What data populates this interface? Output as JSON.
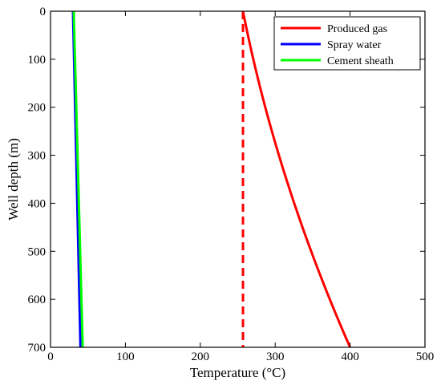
{
  "chart_data": {
    "type": "line",
    "title": "",
    "xlabel": "Temperature (°C)",
    "ylabel": "Well depth  (m)",
    "xlim": [
      0,
      500
    ],
    "ylim": [
      0,
      700
    ],
    "y_inverted": true,
    "x_ticks": [
      "0",
      "100",
      "200",
      "300",
      "400",
      "500"
    ],
    "y_ticks": [
      "0",
      "100",
      "200",
      "300",
      "400",
      "500",
      "600",
      "700"
    ],
    "grid": false,
    "legend_position": "top-right",
    "series": [
      {
        "name": "Produced gas",
        "color": "#ff0000",
        "style": "solid",
        "points": [
          [
            257,
            0
          ],
          [
            259,
            25
          ],
          [
            268,
            100
          ],
          [
            280,
            200
          ],
          [
            294,
            300
          ],
          [
            311,
            400
          ],
          [
            331,
            500
          ],
          [
            353,
            600
          ],
          [
            377,
            700
          ],
          [
            400,
            700
          ]
        ]
      },
      {
        "name": "Spray water",
        "color": "#0000ff",
        "style": "solid",
        "points": [
          [
            30,
            0
          ],
          [
            40,
            700
          ]
        ]
      },
      {
        "name": "Cement sheath",
        "color": "#00ff00",
        "style": "solid",
        "points": [
          [
            31,
            0
          ],
          [
            43,
            700
          ]
        ]
      }
    ],
    "reference_line": {
      "color": "#ff0000",
      "style": "dashed",
      "points": [
        [
          257,
          0
        ],
        [
          257,
          700
        ]
      ]
    }
  }
}
